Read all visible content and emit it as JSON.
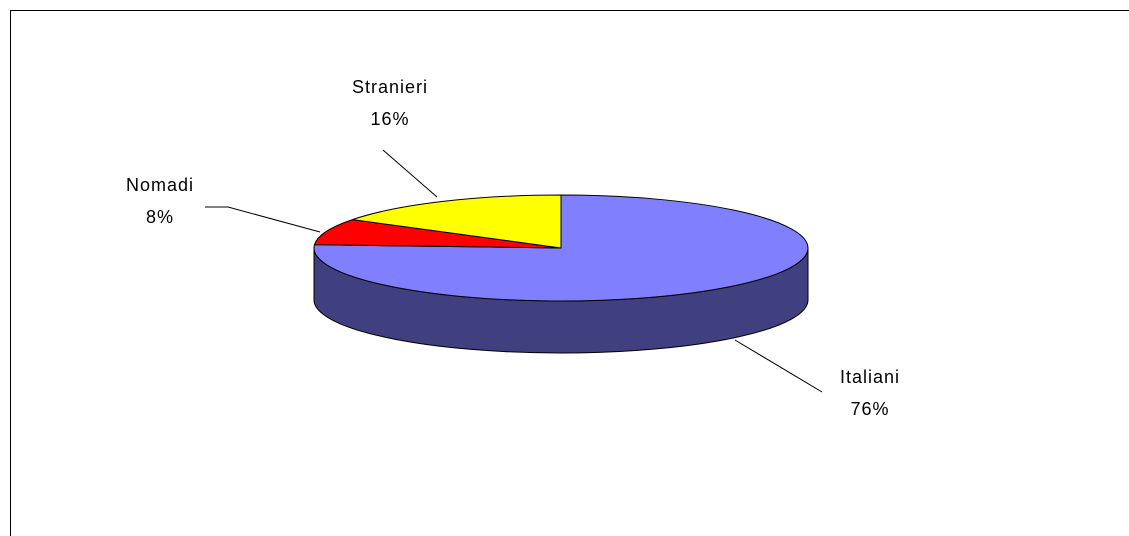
{
  "chart_data": {
    "type": "pie",
    "categories": [
      "Italiani",
      "Nomadi",
      "Stranieri"
    ],
    "values": [
      76,
      8,
      16
    ],
    "value_labels": [
      "76%",
      "8%",
      "16%"
    ],
    "colors": [
      "#8080ff",
      "#ff0000",
      "#ffff00"
    ],
    "side_color": "#404080"
  }
}
